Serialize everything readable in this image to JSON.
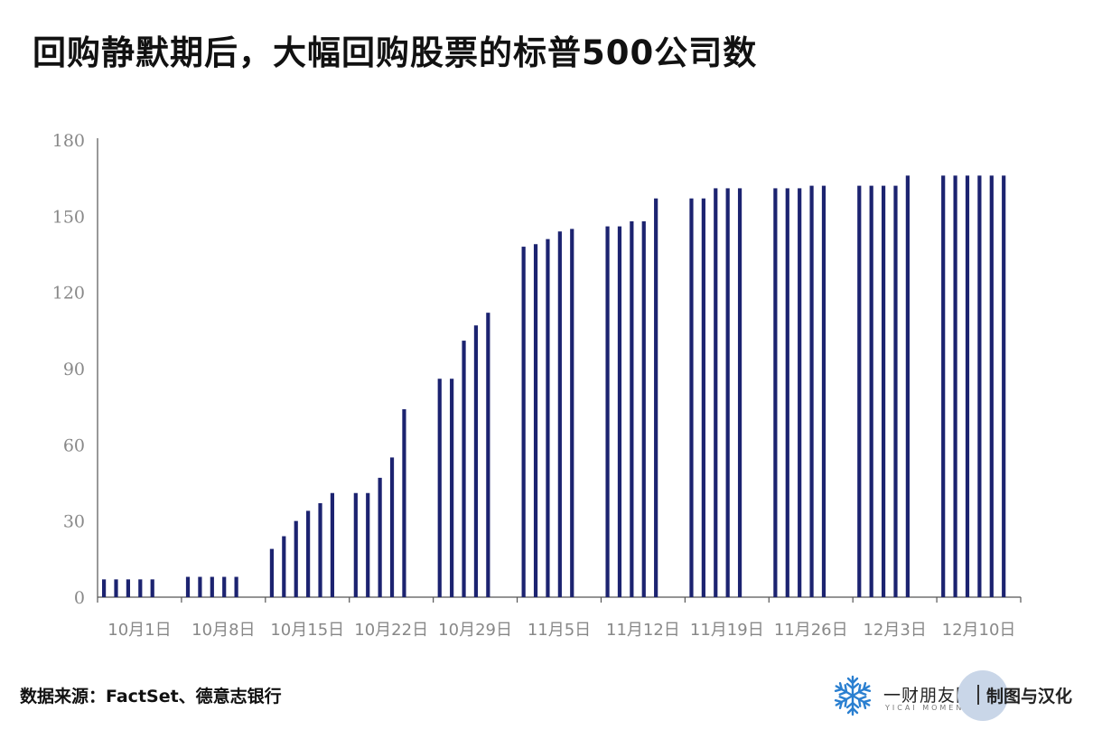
{
  "title": "回购静默期后，大幅回购股票的标普500公司数",
  "source": "数据来源：FactSet、德意志银行",
  "brand": {
    "name": "一财朋友圈",
    "sub": "YICAI MOMENTS",
    "credit": "制图与汉化"
  },
  "colors": {
    "bar": "#1c2370",
    "axis": "#555555",
    "tick_text": "#888888"
  },
  "chart_data": {
    "type": "bar",
    "title": "回购静默期后，大幅回购股票的标普500公司数",
    "ylim": [
      0,
      180
    ],
    "yticks": [
      0,
      30,
      60,
      90,
      120,
      150,
      180
    ],
    "grid": false,
    "week_labels": [
      "10月1日",
      "10月8日",
      "10月15日",
      "10月22日",
      "10月29日",
      "11月5日",
      "11月12日",
      "11月19日",
      "11月26日",
      "12月3日",
      "12月10日"
    ],
    "weeks": [
      [
        7,
        7,
        7,
        7,
        7
      ],
      [
        8,
        8,
        8,
        8,
        8
      ],
      [
        19,
        24,
        30,
        34,
        37,
        41
      ],
      [
        41,
        41,
        47,
        55,
        74
      ],
      [
        86,
        86,
        101,
        107,
        112
      ],
      [
        138,
        139,
        141,
        144,
        145
      ],
      [
        146,
        146,
        148,
        148,
        157
      ],
      [
        157,
        157,
        161,
        161,
        161
      ],
      [
        161,
        161,
        161,
        162,
        162
      ],
      [
        162,
        162,
        162,
        162,
        166
      ],
      [
        166,
        166,
        166,
        166,
        166,
        166
      ]
    ]
  }
}
